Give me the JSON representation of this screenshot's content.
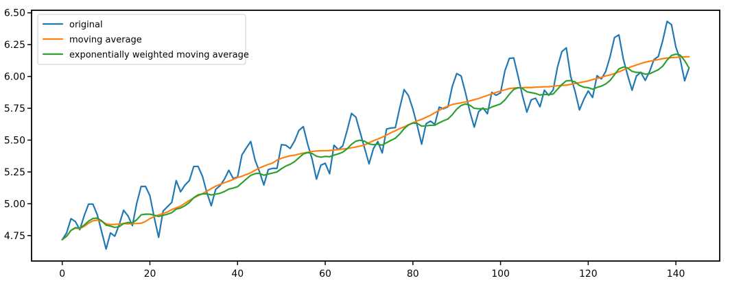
{
  "chart_data": {
    "type": "line",
    "xlabel": "",
    "ylabel": "",
    "title": "",
    "xlim": [
      -7,
      150
    ],
    "ylim": [
      4.55,
      6.52
    ],
    "xticks": [
      0,
      20,
      40,
      60,
      80,
      100,
      120,
      140
    ],
    "yticks": [
      4.75,
      5.0,
      5.25,
      5.5,
      5.75,
      6.0,
      6.25,
      6.5
    ],
    "ytick_labels": [
      "4.75",
      "5.00",
      "5.25",
      "5.50",
      "5.75",
      "6.00",
      "6.25",
      "6.50"
    ],
    "xtick_labels": [
      "0",
      "20",
      "40",
      "60",
      "80",
      "100",
      "120",
      "140"
    ],
    "legend_position": "top-left",
    "grid": false,
    "series": [
      {
        "name": "original",
        "color": "#1f77b4",
        "values": [
          4.718,
          4.771,
          4.883,
          4.86,
          4.796,
          4.905,
          4.997,
          4.997,
          4.913,
          4.779,
          4.644,
          4.771,
          4.745,
          4.836,
          4.949,
          4.905,
          4.828,
          5.004,
          5.136,
          5.136,
          5.063,
          4.89,
          4.736,
          4.942,
          4.977,
          5.011,
          5.182,
          5.094,
          5.147,
          5.182,
          5.293,
          5.293,
          5.215,
          5.087,
          4.984,
          5.112,
          5.142,
          5.193,
          5.263,
          5.199,
          5.209,
          5.384,
          5.438,
          5.489,
          5.342,
          5.252,
          5.147,
          5.268,
          5.278,
          5.278,
          5.464,
          5.46,
          5.434,
          5.493,
          5.576,
          5.606,
          5.468,
          5.352,
          5.193,
          5.303,
          5.318,
          5.236,
          5.46,
          5.425,
          5.455,
          5.576,
          5.71,
          5.68,
          5.557,
          5.434,
          5.313,
          5.434,
          5.489,
          5.399,
          5.587,
          5.595,
          5.598,
          5.753,
          5.897,
          5.849,
          5.744,
          5.613,
          5.468,
          5.628,
          5.649,
          5.624,
          5.759,
          5.746,
          5.762,
          5.924,
          6.023,
          6.004,
          5.872,
          5.724,
          5.602,
          5.724,
          5.753,
          5.707,
          5.875,
          5.852,
          5.872,
          6.045,
          6.142,
          6.146,
          6.002,
          5.849,
          5.72,
          5.817,
          5.829,
          5.762,
          5.892,
          5.852,
          5.894,
          6.075,
          6.196,
          6.225,
          6.001,
          5.883,
          5.737,
          5.82,
          5.886,
          5.835,
          6.006,
          5.981,
          6.04,
          6.157,
          6.306,
          6.327,
          6.138,
          6.009,
          5.892,
          6.004,
          6.033,
          5.969,
          6.038,
          6.133,
          6.157,
          6.282,
          6.433,
          6.407,
          6.23,
          6.133,
          5.966,
          6.068
        ]
      },
      {
        "name": "moving average",
        "color": "#ff7f0e",
        "values": [
          4.718,
          4.745,
          4.791,
          4.808,
          4.806,
          4.822,
          4.847,
          4.866,
          4.871,
          4.862,
          4.842,
          4.836,
          4.838,
          4.84,
          4.845,
          4.842,
          4.844,
          4.845,
          4.847,
          4.861,
          4.883,
          4.9,
          4.912,
          4.924,
          4.935,
          4.954,
          4.968,
          4.981,
          5.004,
          5.026,
          5.045,
          5.063,
          5.079,
          5.099,
          5.119,
          5.138,
          5.152,
          5.165,
          5.178,
          5.191,
          5.206,
          5.216,
          5.23,
          5.243,
          5.263,
          5.282,
          5.295,
          5.309,
          5.32,
          5.343,
          5.357,
          5.367,
          5.377,
          5.382,
          5.39,
          5.398,
          5.404,
          5.411,
          5.415,
          5.416,
          5.417,
          5.418,
          5.422,
          5.426,
          5.43,
          5.433,
          5.44,
          5.446,
          5.453,
          5.462,
          5.48,
          5.495,
          5.508,
          5.523,
          5.54,
          5.558,
          5.574,
          5.59,
          5.604,
          5.621,
          5.635,
          5.651,
          5.663,
          5.679,
          5.695,
          5.715,
          5.734,
          5.752,
          5.767,
          5.78,
          5.787,
          5.793,
          5.8,
          5.808,
          5.817,
          5.827,
          5.839,
          5.851,
          5.863,
          5.875,
          5.885,
          5.895,
          5.905,
          5.909,
          5.911,
          5.912,
          5.914,
          5.913,
          5.916,
          5.917,
          5.919,
          5.919,
          5.923,
          5.927,
          5.93,
          5.932,
          5.938,
          5.945,
          5.952,
          5.958,
          5.965,
          5.976,
          5.984,
          5.993,
          6.005,
          6.012,
          6.023,
          6.036,
          6.051,
          6.065,
          6.079,
          6.09,
          6.102,
          6.112,
          6.119,
          6.126,
          6.133,
          6.14,
          6.145,
          6.148,
          6.15,
          6.153,
          6.154,
          6.155
        ]
      },
      {
        "name": "exponentially weighted moving average",
        "color": "#2ca02c",
        "values": [
          4.718,
          4.745,
          4.791,
          4.812,
          4.808,
          4.832,
          4.863,
          4.884,
          4.887,
          4.866,
          4.832,
          4.824,
          4.814,
          4.82,
          4.844,
          4.853,
          4.849,
          4.874,
          4.913,
          4.918,
          4.918,
          4.91,
          4.9,
          4.909,
          4.918,
          4.93,
          4.958,
          4.966,
          4.985,
          5.01,
          5.048,
          5.07,
          5.077,
          5.078,
          5.069,
          5.075,
          5.082,
          5.096,
          5.115,
          5.123,
          5.134,
          5.164,
          5.194,
          5.223,
          5.237,
          5.239,
          5.224,
          5.234,
          5.241,
          5.25,
          5.275,
          5.296,
          5.31,
          5.331,
          5.361,
          5.391,
          5.402,
          5.395,
          5.373,
          5.366,
          5.372,
          5.369,
          5.382,
          5.392,
          5.405,
          5.432,
          5.467,
          5.492,
          5.499,
          5.491,
          5.47,
          5.464,
          5.468,
          5.46,
          5.48,
          5.498,
          5.515,
          5.548,
          5.59,
          5.619,
          5.634,
          5.631,
          5.61,
          5.612,
          5.616,
          5.617,
          5.636,
          5.652,
          5.666,
          5.7,
          5.743,
          5.772,
          5.784,
          5.774,
          5.75,
          5.746,
          5.747,
          5.742,
          5.76,
          5.772,
          5.784,
          5.816,
          5.86,
          5.898,
          5.912,
          5.906,
          5.88,
          5.873,
          5.866,
          5.854,
          5.859,
          5.858,
          5.862,
          5.9,
          5.937,
          5.966,
          5.968,
          5.957,
          5.93,
          5.916,
          5.912,
          5.9,
          5.914,
          5.924,
          5.941,
          5.969,
          6.014,
          6.059,
          6.074,
          6.066,
          6.04,
          6.032,
          6.031,
          6.018,
          6.021,
          6.037,
          6.053,
          6.081,
          6.129,
          6.165,
          6.175,
          6.168,
          6.124,
          6.067
        ]
      }
    ]
  }
}
